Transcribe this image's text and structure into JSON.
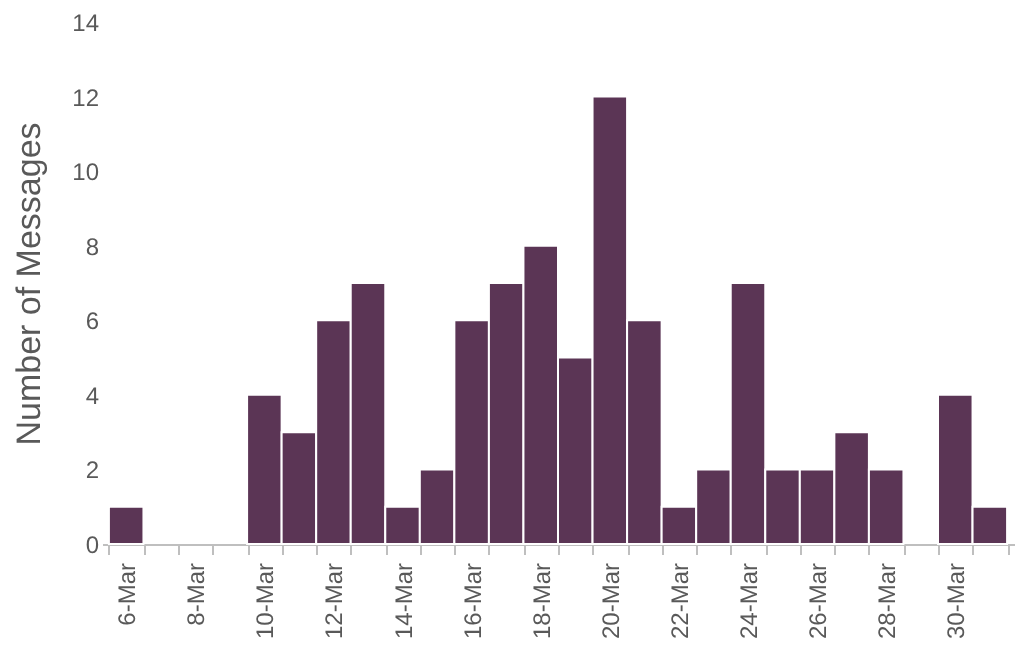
{
  "chart_data": {
    "type": "bar",
    "ylabel": "Number of Messages",
    "categories": [
      "6-Mar",
      null,
      "8-Mar",
      null,
      "10-Mar",
      null,
      "12-Mar",
      null,
      "14-Mar",
      null,
      "16-Mar",
      null,
      "18-Mar",
      null,
      "20-Mar",
      null,
      "22-Mar",
      null,
      "24-Mar",
      null,
      "26-Mar",
      null,
      "28-Mar",
      null,
      "30-Mar",
      null
    ],
    "values": [
      1,
      0,
      0,
      0,
      4,
      3,
      6,
      7,
      1,
      2,
      6,
      7,
      8,
      5,
      12,
      6,
      1,
      2,
      7,
      2,
      2,
      3,
      2,
      0,
      4,
      1
    ],
    "color": "#5b3555",
    "ylim": [
      0,
      14
    ],
    "yticks": [
      0,
      2,
      4,
      6,
      8,
      10,
      12,
      14
    ],
    "grid": false
  }
}
